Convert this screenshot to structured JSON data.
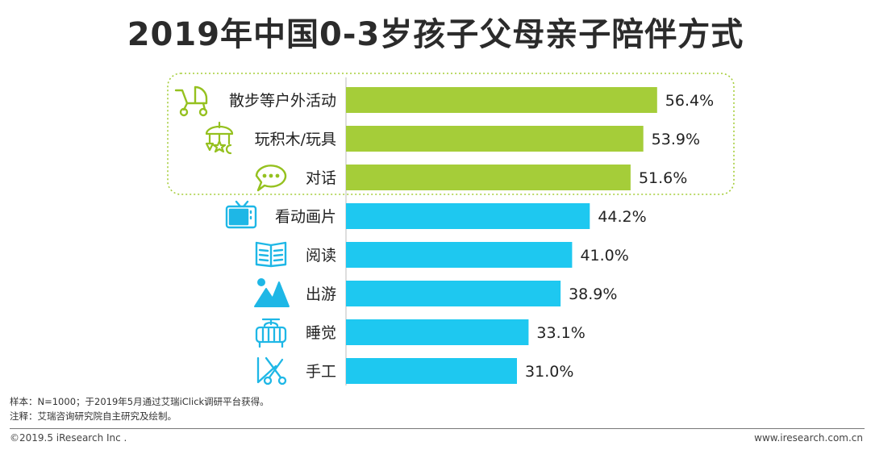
{
  "chart_data": {
    "type": "bar",
    "orientation": "horizontal",
    "title": "2019年中国0-3岁孩子父母亲子陪伴方式",
    "categories": [
      "散步等户外活动",
      "玩积木/玩具",
      "对话",
      "看动画片",
      "阅读",
      "出游",
      "睡觉",
      "手工"
    ],
    "values": [
      56.4,
      53.9,
      51.6,
      44.2,
      41.0,
      38.9,
      33.1,
      31.0
    ],
    "value_labels": [
      "56.4%",
      "53.9%",
      "51.6%",
      "44.2%",
      "41.0%",
      "38.9%",
      "33.1%",
      "31.0%"
    ],
    "icons": [
      "stroller-icon",
      "baby-mobile-icon",
      "speech-bubble-icon",
      "tv-icon",
      "open-book-icon",
      "mountain-icon",
      "crib-icon",
      "scissors-icon"
    ],
    "xlim": [
      0,
      100
    ],
    "highlighted_top_n": 3,
    "colors": {
      "highlight": "#a5cd39",
      "normal": "#1ec8f0",
      "icon_highlight": "#95c11f",
      "icon_normal": "#1eb7e6",
      "box_border": "#a5cd39"
    },
    "xlabel": "",
    "ylabel": ""
  },
  "notes": {
    "sample": "样本：N=1000；于2019年5月通过艾瑞iClick调研平台获得。",
    "source": "注释：艾瑞咨询研究院自主研究及绘制。"
  },
  "footer": {
    "copyright": "©2019.5 iResearch Inc .",
    "website": "www.iresearch.com.cn"
  }
}
